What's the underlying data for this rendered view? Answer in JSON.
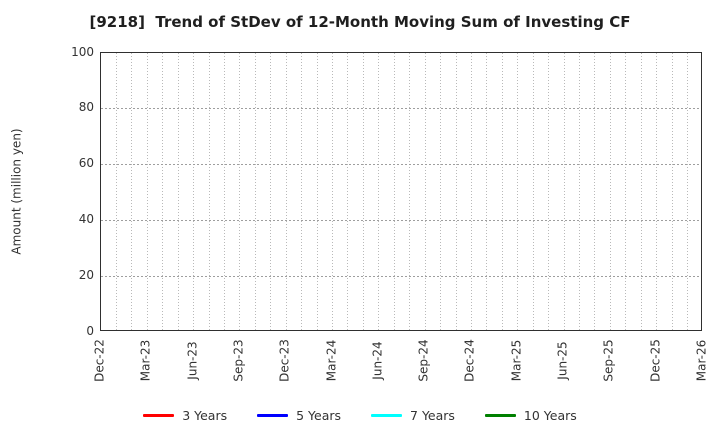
{
  "chart_data": {
    "type": "line",
    "title": "[9218]  Trend of StDev of 12-Month Moving Sum of Investing CF",
    "ylabel": "Amount (million yen)",
    "xlabel": "",
    "x_tick_labels": [
      "Dec-22",
      "Mar-23",
      "Jun-23",
      "Sep-23",
      "Dec-23",
      "Mar-24",
      "Jun-24",
      "Sep-24",
      "Dec-24",
      "Mar-25",
      "Jun-25",
      "Sep-25",
      "Dec-25",
      "Mar-26"
    ],
    "x_minor_divisions": 39,
    "ylim": [
      0,
      100
    ],
    "yticks": [
      0,
      20,
      40,
      60,
      80,
      100
    ],
    "grid": "dotted, vertical monthly and horizontal at each y tick",
    "legend_position": "bottom-center",
    "series": [
      {
        "name": "3 Years",
        "color": "#ff0000",
        "values": []
      },
      {
        "name": "5 Years",
        "color": "#0000ff",
        "values": []
      },
      {
        "name": "7 Years",
        "color": "#00ffff",
        "values": []
      },
      {
        "name": "10 Years",
        "color": "#008000",
        "values": []
      }
    ],
    "note": "axes are empty — no data lines are drawn",
    "colors": {
      "frame": "#2f2f2f",
      "grid_vertical": "#b9b9b9",
      "grid_horizontal": "#9e9e9e",
      "title_text": "#1f1f1f",
      "tick_text": "#333333"
    }
  }
}
